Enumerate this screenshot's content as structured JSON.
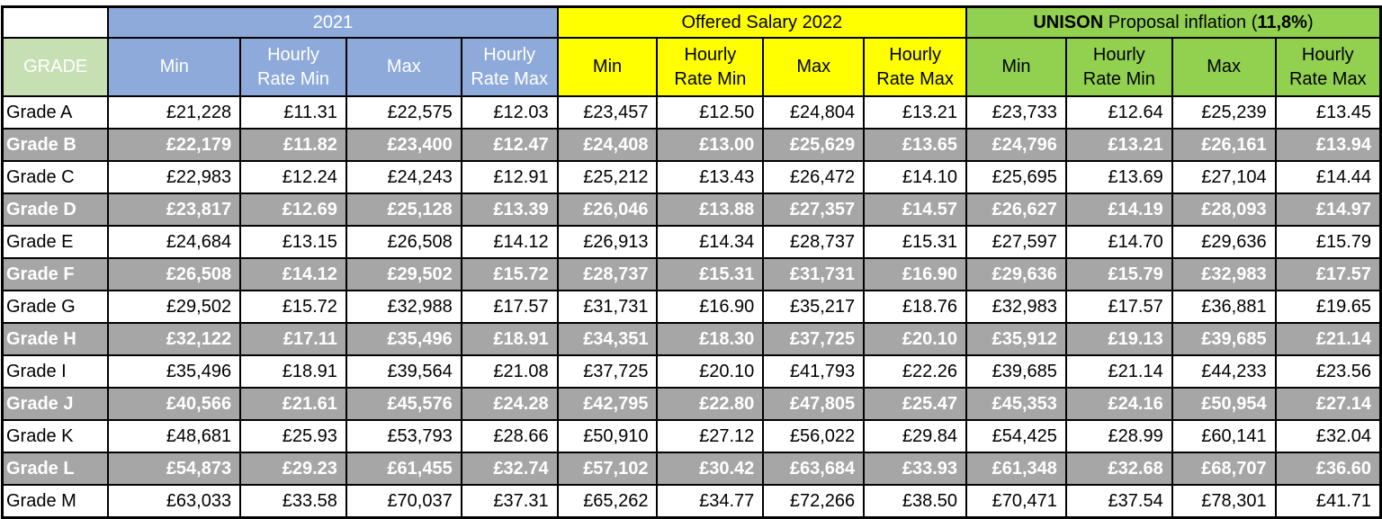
{
  "table": {
    "grade_header": "GRADE",
    "groups": [
      {
        "id": "y2021",
        "title": "2021",
        "header_bg": "#8EAADB",
        "header_text": "#FFFFFF",
        "columns": [
          "Min",
          "Hourly Rate Min",
          "Max",
          "Hourly Rate Max"
        ]
      },
      {
        "id": "offered2022",
        "title": "Offered Salary 2022",
        "header_bg": "#FFFF00",
        "header_text": "#000000",
        "columns": [
          "Min",
          "Hourly Rate Min",
          "Max",
          "Hourly Rate Max"
        ]
      },
      {
        "id": "unison",
        "title_brand": "UNISON",
        "title_middle": " Proposal inflation (",
        "title_percent": "11,8%",
        "title_suffix": ")",
        "header_bg": "#92D050",
        "header_text": "#000000",
        "columns": [
          "Min",
          "Hourly Rate Min",
          "Max",
          "Hourly Rate Max"
        ]
      }
    ],
    "rows": [
      {
        "grade": "Grade A",
        "highlight": false,
        "y2021": [
          "£21,228",
          "£11.31",
          "£22,575",
          "£12.03"
        ],
        "offered2022": [
          "£23,457",
          "£12.50",
          "£24,804",
          "£13.21"
        ],
        "unison": [
          "£23,733",
          "£12.64",
          "£25,239",
          "£13.45"
        ]
      },
      {
        "grade": "Grade B",
        "highlight": true,
        "y2021": [
          "£22,179",
          "£11.82",
          "£23,400",
          "£12.47"
        ],
        "offered2022": [
          "£24,408",
          "£13.00",
          "£25,629",
          "£13.65"
        ],
        "unison": [
          "£24,796",
          "£13.21",
          "£26,161",
          "£13.94"
        ]
      },
      {
        "grade": "Grade C",
        "highlight": false,
        "y2021": [
          "£22,983",
          "£12.24",
          "£24,243",
          "£12.91"
        ],
        "offered2022": [
          "£25,212",
          "£13.43",
          "£26,472",
          "£14.10"
        ],
        "unison": [
          "£25,695",
          "£13.69",
          "£27,104",
          "£14.44"
        ]
      },
      {
        "grade": "Grade D",
        "highlight": true,
        "y2021": [
          "£23,817",
          "£12.69",
          "£25,128",
          "£13.39"
        ],
        "offered2022": [
          "£26,046",
          "£13.88",
          "£27,357",
          "£14.57"
        ],
        "unison": [
          "£26,627",
          "£14.19",
          "£28,093",
          "£14.97"
        ]
      },
      {
        "grade": "Grade E",
        "highlight": false,
        "y2021": [
          "£24,684",
          "£13.15",
          "£26,508",
          "£14.12"
        ],
        "offered2022": [
          "£26,913",
          "£14.34",
          "£28,737",
          "£15.31"
        ],
        "unison": [
          "£27,597",
          "£14.70",
          "£29,636",
          "£15.79"
        ]
      },
      {
        "grade": "Grade F",
        "highlight": true,
        "y2021": [
          "£26,508",
          "£14.12",
          "£29,502",
          "£15.72"
        ],
        "offered2022": [
          "£28,737",
          "£15.31",
          "£31,731",
          "£16.90"
        ],
        "unison": [
          "£29,636",
          "£15.79",
          "£32,983",
          "£17.57"
        ]
      },
      {
        "grade": "Grade G",
        "highlight": false,
        "y2021": [
          "£29,502",
          "£15.72",
          "£32,988",
          "£17.57"
        ],
        "offered2022": [
          "£31,731",
          "£16.90",
          "£35,217",
          "£18.76"
        ],
        "unison": [
          "£32,983",
          "£17.57",
          "£36,881",
          "£19.65"
        ]
      },
      {
        "grade": "Grade H",
        "highlight": true,
        "y2021": [
          "£32,122",
          "£17.11",
          "£35,496",
          "£18.91"
        ],
        "offered2022": [
          "£34,351",
          "£18.30",
          "£37,725",
          "£20.10"
        ],
        "unison": [
          "£35,912",
          "£19.13",
          "£39,685",
          "£21.14"
        ]
      },
      {
        "grade": "Grade I",
        "highlight": false,
        "y2021": [
          "£35,496",
          "£18.91",
          "£39,564",
          "£21.08"
        ],
        "offered2022": [
          "£37,725",
          "£20.10",
          "£41,793",
          "£22.26"
        ],
        "unison": [
          "£39,685",
          "£21.14",
          "£44,233",
          "£23.56"
        ]
      },
      {
        "grade": "Grade J",
        "highlight": true,
        "y2021": [
          "£40,566",
          "£21.61",
          "£45,576",
          "£24.28"
        ],
        "offered2022": [
          "£42,795",
          "£22.80",
          "£47,805",
          "£25.47"
        ],
        "unison": [
          "£45,353",
          "£24.16",
          "£50,954",
          "£27.14"
        ]
      },
      {
        "grade": "Grade K",
        "highlight": false,
        "y2021": [
          "£48,681",
          "£25.93",
          "£53,793",
          "£28.66"
        ],
        "offered2022": [
          "£50,910",
          "£27.12",
          "£56,022",
          "£29.84"
        ],
        "unison": [
          "£54,425",
          "£28.99",
          "£60,141",
          "£32.04"
        ]
      },
      {
        "grade": "Grade L",
        "highlight": true,
        "y2021": [
          "£54,873",
          "£29.23",
          "£61,455",
          "£32.74"
        ],
        "offered2022": [
          "£57,102",
          "£30.42",
          "£63,684",
          "£33.93"
        ],
        "unison": [
          "£61,348",
          "£32.68",
          "£68,707",
          "£36.60"
        ]
      },
      {
        "grade": "Grade M",
        "highlight": false,
        "y2021": [
          "£63,033",
          "£33.58",
          "£70,037",
          "£37.31"
        ],
        "offered2022": [
          "£65,262",
          "£34.77",
          "£72,266",
          "£38.50"
        ],
        "unison": [
          "£70,471",
          "£37.54",
          "£78,301",
          "£41.71"
        ]
      }
    ]
  },
  "colors": {
    "group_2021_bg": "#8EAADB",
    "group_2022_bg": "#FFFF00",
    "group_unison_bg": "#92D050",
    "grade_header_bg": "#C6E0B4",
    "highlight_row_bg": "#A6A6A6",
    "border": "#000000",
    "highlight_text": "#FFFFFF"
  }
}
